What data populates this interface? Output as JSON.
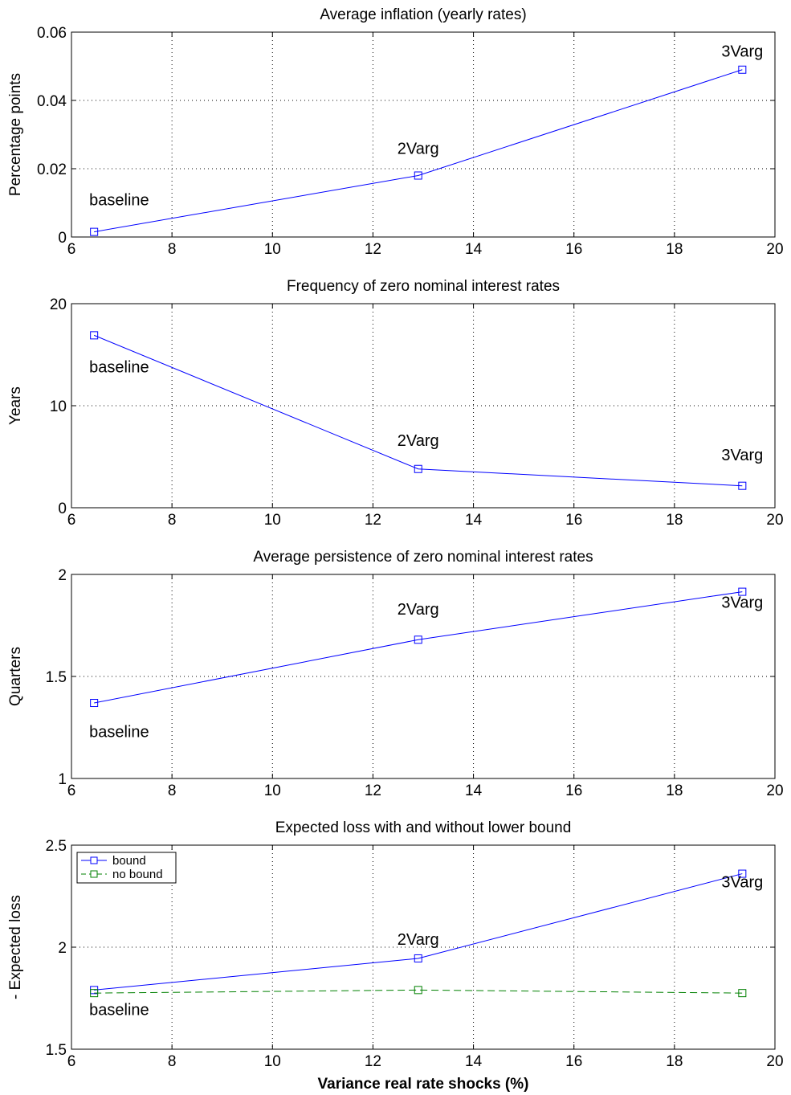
{
  "chart_data": [
    {
      "type": "line",
      "title": "Average inflation (yearly rates)",
      "ylabel": "Percentage points",
      "xlabel": "",
      "xlim": [
        6,
        20
      ],
      "ylim": [
        0,
        0.06
      ],
      "xticks": [
        6,
        8,
        10,
        12,
        14,
        16,
        18,
        20
      ],
      "yticks": [
        0,
        0.02,
        0.04,
        0.06
      ],
      "ytick_labels": [
        "0",
        "0.02",
        "0.04",
        "0.06"
      ],
      "grid": true,
      "series": [
        {
          "x": [
            6.45,
            12.9,
            19.35
          ],
          "values": [
            0.0015,
            0.018,
            0.049
          ],
          "color": "#0000ff",
          "dash": false
        }
      ],
      "annotations": [
        {
          "text": "baseline",
          "x": 6.45,
          "y": 0.011
        },
        {
          "text": "2Varg",
          "x": 12.9,
          "y": 0.026
        },
        {
          "text": "3Varg",
          "x": 19.35,
          "y": 0.0545
        }
      ]
    },
    {
      "type": "line",
      "title": "Frequency of zero nominal interest rates",
      "ylabel": "Years",
      "xlabel": "",
      "xlim": [
        6,
        20
      ],
      "ylim": [
        0,
        20
      ],
      "xticks": [
        6,
        8,
        10,
        12,
        14,
        16,
        18,
        20
      ],
      "yticks": [
        0,
        10,
        20
      ],
      "ytick_labels": [
        "0",
        "10",
        "20"
      ],
      "grid": true,
      "series": [
        {
          "x": [
            6.45,
            12.9,
            19.35
          ],
          "values": [
            16.9,
            3.8,
            2.15
          ],
          "color": "#0000ff",
          "dash": false
        }
      ],
      "annotations": [
        {
          "text": "baseline",
          "x": 6.45,
          "y": 13.8
        },
        {
          "text": "2Varg",
          "x": 12.9,
          "y": 6.6
        },
        {
          "text": "3Varg",
          "x": 19.35,
          "y": 5.2
        }
      ]
    },
    {
      "type": "line",
      "title": "Average persistence of zero nominal interest rates",
      "ylabel": "Quarters",
      "xlabel": "",
      "xlim": [
        6,
        20
      ],
      "ylim": [
        1,
        2
      ],
      "xticks": [
        6,
        8,
        10,
        12,
        14,
        16,
        18,
        20
      ],
      "yticks": [
        1,
        1.5,
        2
      ],
      "ytick_labels": [
        "1",
        "1.5",
        "2"
      ],
      "grid": true,
      "series": [
        {
          "x": [
            6.45,
            12.9,
            19.35
          ],
          "values": [
            1.37,
            1.68,
            1.915
          ],
          "color": "#0000ff",
          "dash": false
        }
      ],
      "annotations": [
        {
          "text": "baseline",
          "x": 6.45,
          "y": 1.23
        },
        {
          "text": "2Varg",
          "x": 12.9,
          "y": 1.83
        },
        {
          "text": "3Varg",
          "x": 19.35,
          "y": 1.865
        }
      ]
    },
    {
      "type": "line",
      "title": "Expected loss with and without lower bound",
      "ylabel": "- Expected loss",
      "xlabel": "Variance real rate shocks (%)",
      "xlim": [
        6,
        20
      ],
      "ylim": [
        1.5,
        2.5
      ],
      "xticks": [
        6,
        8,
        10,
        12,
        14,
        16,
        18,
        20
      ],
      "yticks": [
        1.5,
        2,
        2.5
      ],
      "ytick_labels": [
        "1.5",
        "2",
        "2.5"
      ],
      "grid": true,
      "legend": "top-left",
      "series": [
        {
          "name": "bound",
          "x": [
            6.45,
            12.9,
            19.35
          ],
          "values": [
            1.79,
            1.945,
            2.36
          ],
          "color": "#0000ff",
          "dash": false
        },
        {
          "name": "no bound",
          "x": [
            6.45,
            12.9,
            19.35
          ],
          "values": [
            1.775,
            1.79,
            1.775
          ],
          "color": "#008000",
          "dash": true
        }
      ],
      "annotations": [
        {
          "text": "baseline",
          "x": 6.45,
          "y": 1.695
        },
        {
          "text": "2Varg",
          "x": 12.9,
          "y": 2.04
        },
        {
          "text": "3Varg",
          "x": 19.35,
          "y": 2.32
        }
      ]
    }
  ]
}
